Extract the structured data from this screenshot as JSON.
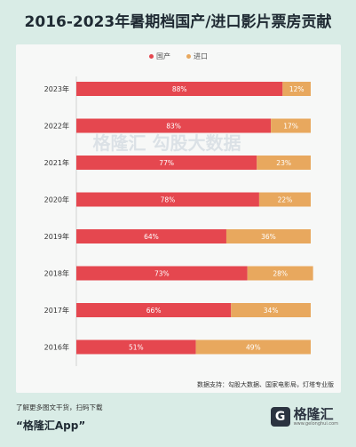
{
  "title": "2016-2023年暑期档国产/进口影片票房贡献",
  "chart_data": {
    "type": "bar",
    "stacked": true,
    "orientation": "horizontal",
    "categories": [
      "2023年",
      "2022年",
      "2021年",
      "2020年",
      "2019年",
      "2018年",
      "2017年",
      "2016年"
    ],
    "series": [
      {
        "name": "国产",
        "color": "#e5474f",
        "values": [
          88,
          83,
          77,
          78,
          64,
          73,
          66,
          51
        ],
        "labels": [
          "88%",
          "83%",
          "77%",
          "78%",
          "64%",
          "73%",
          "66%",
          "51%"
        ]
      },
      {
        "name": "进口",
        "color": "#e8a85e",
        "values": [
          12,
          17,
          23,
          22,
          36,
          28,
          34,
          49
        ],
        "labels": [
          "12%",
          "17%",
          "23%",
          "22%",
          "36%",
          "28%",
          "34%",
          "49%"
        ]
      }
    ],
    "xlim": [
      0,
      100
    ],
    "legend": "top-center"
  },
  "source": "数据支持：勾股大数据、国家电影局，灯塔专业版",
  "watermark": {
    "brand": "格隆汇",
    "sub": "勾股大数据",
    "url": "www.gogudata.com"
  },
  "footer": {
    "note": "了解更多图文干货，扫码下载",
    "app": "“格隆汇App”",
    "brand": "格隆汇",
    "brand_logo": "G",
    "brand_sub": "www.gelonghui.com"
  }
}
